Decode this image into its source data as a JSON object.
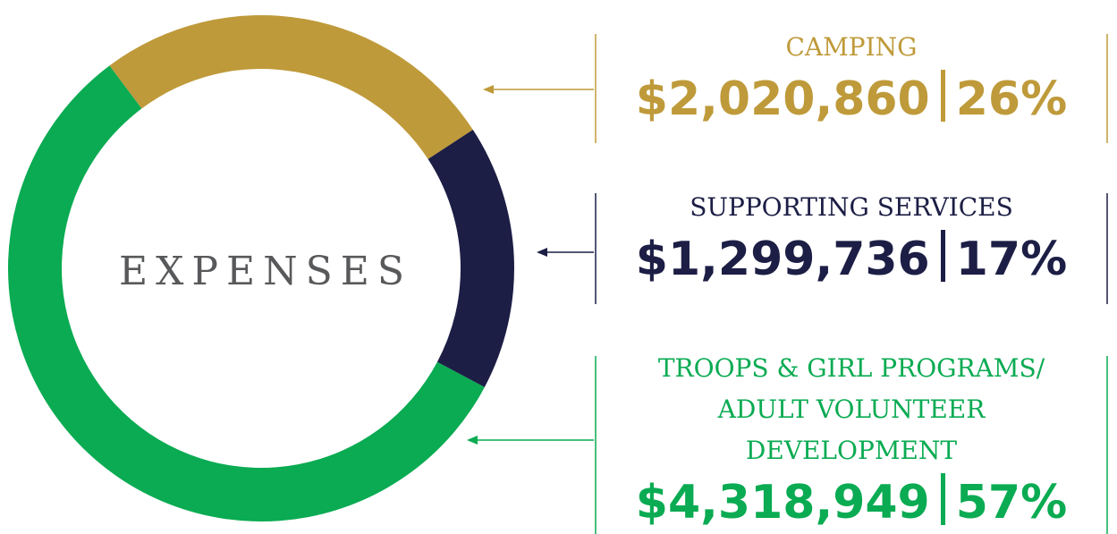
{
  "chart_data": {
    "type": "pie",
    "donut": true,
    "center_label": "EXPENSES",
    "categories": [
      "CAMPING",
      "SUPPORTING SERVICES",
      "TROOPS & GIRL PROGRAMS/\nADULT VOLUNTEER\nDEVELOPMENT"
    ],
    "amount_labels": [
      "$2,020,860",
      "$1,299,736",
      "$4,318,949"
    ],
    "values": [
      26,
      17,
      57
    ],
    "value_labels": [
      "26%",
      "17%",
      "57%"
    ],
    "colors": [
      "#bf9a3a",
      "#1c1e45",
      "#0aab52"
    ]
  }
}
